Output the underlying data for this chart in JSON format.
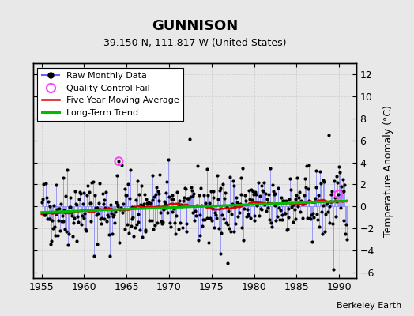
{
  "title": "GUNNISON",
  "subtitle": "39.150 N, 111.817 W (United States)",
  "credit": "Berkeley Earth",
  "xlim": [
    1954.0,
    1992.0
  ],
  "ylim": [
    -6.5,
    13.0
  ],
  "yticks_right": [
    -6,
    -4,
    -2,
    0,
    2,
    4,
    6,
    8,
    10,
    12
  ],
  "yticks_left": [
    -6,
    -4,
    -2,
    0,
    2,
    4,
    6,
    8,
    10,
    12
  ],
  "xticks": [
    1955,
    1960,
    1965,
    1970,
    1975,
    1980,
    1985,
    1990
  ],
  "ylabel": "Temperature Anomaly (°C)",
  "bg_color": "#e8e8e8",
  "grid_color": "#cccccc",
  "line_color": "#6666ff",
  "line_alpha": 0.6,
  "dot_color": "black",
  "ma_color": "#dd0000",
  "trend_color": "#00bb00",
  "qc_color": "#ff44ff",
  "seed": 42,
  "start_year": 1955,
  "end_year": 1990,
  "qc_fail_indices": [
    109,
    419
  ]
}
